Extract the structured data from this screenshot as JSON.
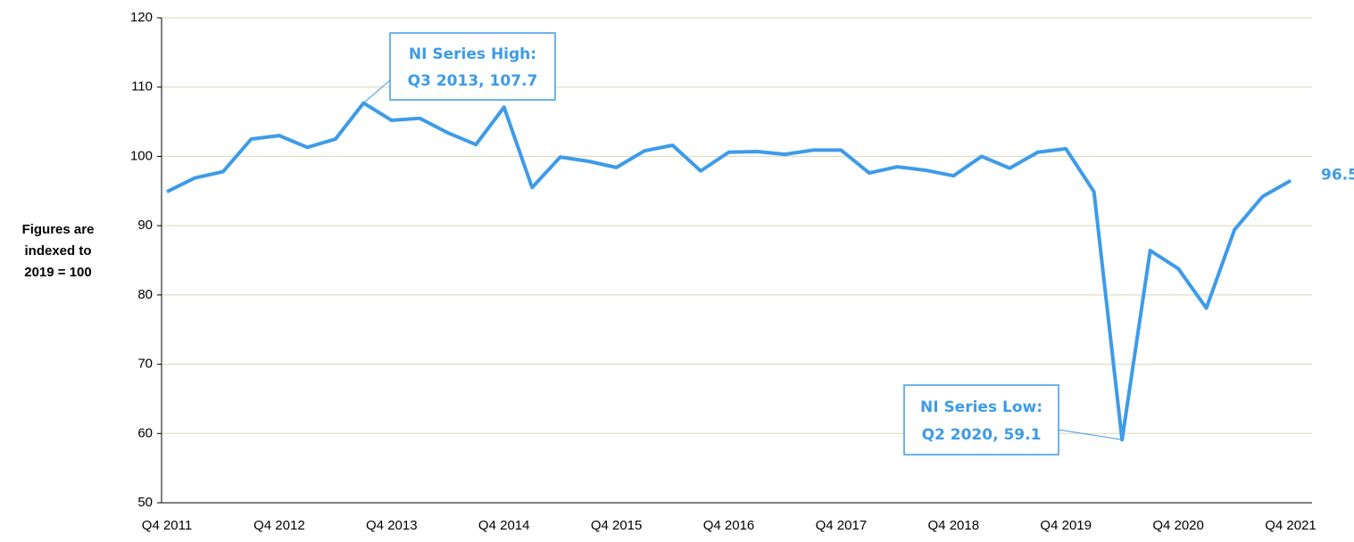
{
  "chart_data": {
    "type": "line",
    "y_label": [
      "Figures are",
      "indexed to",
      "2019 = 100"
    ],
    "categories": [
      "Q4 2011",
      null,
      null,
      null,
      "Q4 2012",
      null,
      null,
      null,
      "Q4 2013",
      null,
      null,
      null,
      "Q4 2014",
      null,
      null,
      null,
      "Q4 2015",
      null,
      null,
      null,
      "Q4 2016",
      null,
      null,
      null,
      "Q4 2017",
      null,
      null,
      null,
      "Q4 2018",
      null,
      null,
      null,
      "Q4 2019",
      null,
      null,
      null,
      "Q4 2020",
      null,
      null,
      null,
      "Q4 2021"
    ],
    "series": [
      {
        "name": "NI",
        "color": "#3d9be9",
        "values": [
          94.9,
          96.9,
          97.8,
          102.5,
          103.0,
          101.3,
          102.5,
          107.7,
          105.2,
          105.5,
          103.4,
          101.7,
          107.1,
          95.5,
          99.9,
          99.3,
          98.4,
          100.8,
          101.6,
          97.9,
          100.6,
          100.7,
          100.3,
          100.9,
          100.9,
          97.6,
          98.5,
          98.0,
          97.2,
          100.0,
          98.3,
          100.6,
          101.1,
          94.9,
          59.1,
          86.4,
          83.8,
          78.1,
          89.4,
          94.2,
          96.5
        ]
      }
    ],
    "ylim": [
      50,
      120
    ],
    "yticks": [
      50,
      60,
      70,
      80,
      90,
      100,
      110,
      120
    ],
    "grid": true,
    "annotation_high": [
      "NI Series High:",
      "Q3 2013, 107.7"
    ],
    "annotation_low": [
      "NI Series Low:",
      "Q2 2020, 59.1"
    ],
    "last_label": "96.5"
  }
}
